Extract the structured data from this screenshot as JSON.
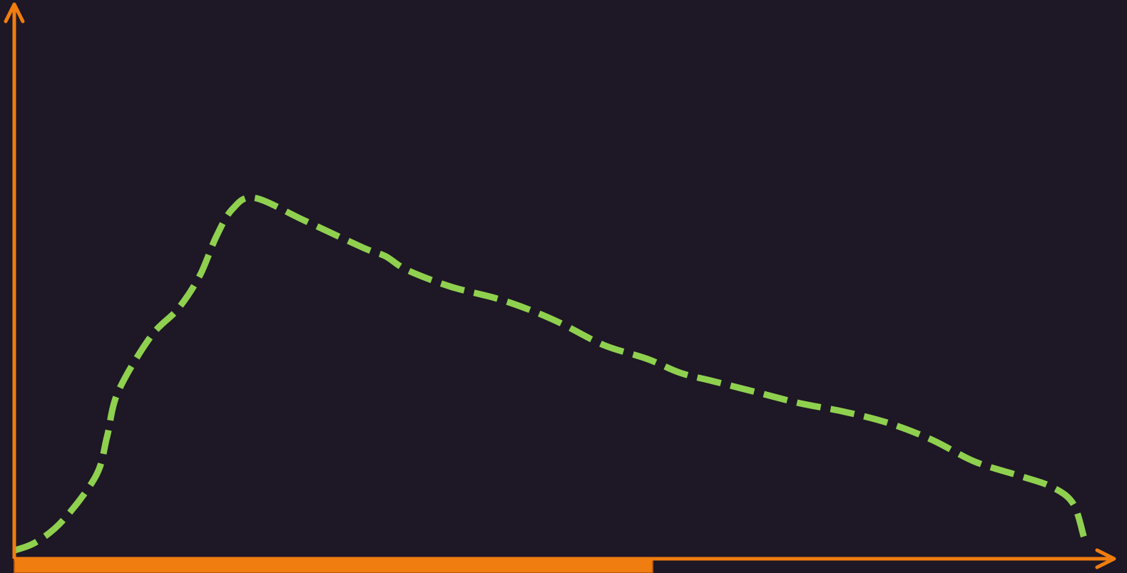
{
  "colors": {
    "background": "#1e1725",
    "axis": "#f07d0f",
    "series": "#8fd14f",
    "progress_fill": "#f07d0f",
    "progress_border": "#b85a0a"
  },
  "progress": {
    "value": 0.585
  },
  "chart_data": {
    "type": "line",
    "title": "",
    "xlabel": "",
    "ylabel": "",
    "xlim": [
      0,
      100
    ],
    "ylim": [
      0,
      100
    ],
    "grid": false,
    "legend": "none",
    "line_style": "dashed",
    "series": [
      {
        "x": [
          0,
          2,
          4.5,
          7.5,
          8.5,
          9.5,
          12.5,
          15,
          17,
          18.5,
          20,
          22,
          26.5,
          32,
          34,
          36,
          40,
          44,
          47,
          50,
          54,
          58,
          61,
          64,
          68,
          72,
          76,
          80,
          84,
          88,
          92,
          95,
          97,
          98
        ],
        "y": [
          1.5,
          3,
          7,
          15,
          22,
          30,
          40,
          45,
          51,
          58,
          63,
          65,
          61,
          56,
          54.5,
          52,
          49,
          47,
          45,
          42.5,
          38.5,
          36,
          33.5,
          32,
          30,
          28,
          26.5,
          24.5,
          21.5,
          17.5,
          15,
          13,
          10,
          4
        ]
      }
    ]
  }
}
